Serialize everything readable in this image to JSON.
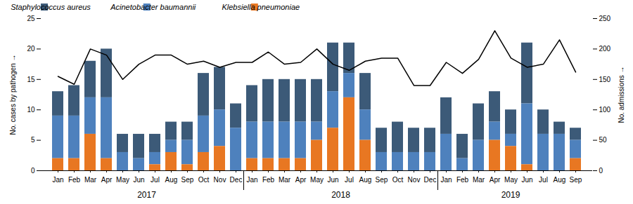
{
  "chart_data": {
    "type": "bar",
    "stacked": true,
    "legend": "upper left",
    "categories": [
      "Jan",
      "Feb",
      "Mar",
      "Apr",
      "May",
      "Jun",
      "Jul",
      "Aug",
      "Sep",
      "Oct",
      "Nov",
      "Dec",
      "Jan",
      "Feb",
      "Mar",
      "Apr",
      "May",
      "Jun",
      "Jul",
      "Aug",
      "Sep",
      "Oct",
      "Nov",
      "Dec",
      "Jan",
      "Feb",
      "Mar",
      "Apr",
      "May",
      "Jun",
      "Jul",
      "Aug",
      "Sep"
    ],
    "annotations": [
      "2017",
      "2018",
      "2019"
    ],
    "series": [
      {
        "name": "Staphylococcus aureus",
        "color": "#3c5a78",
        "values": [
          4,
          5,
          6,
          8,
          3,
          4,
          3,
          3,
          3,
          7,
          7,
          4,
          6,
          7,
          7,
          7,
          7,
          8,
          5,
          6,
          4,
          5,
          4,
          4,
          6,
          4,
          6,
          5,
          4,
          10,
          4,
          2,
          2
        ]
      },
      {
        "name": "Acinetobacter baumannii",
        "color": "#4e81bd",
        "values": [
          7,
          7,
          6,
          10,
          3,
          2,
          2,
          2,
          4,
          6,
          6,
          7,
          6,
          6,
          6,
          6,
          3,
          6,
          4,
          5,
          3,
          3,
          3,
          3,
          6,
          2,
          5,
          3,
          2,
          10,
          6,
          6,
          3
        ]
      },
      {
        "name": "Klebsiella pneumoniae",
        "color": "#e87722",
        "values": [
          2,
          2,
          6,
          2,
          0,
          0,
          1,
          3,
          1,
          3,
          4,
          0,
          2,
          2,
          2,
          2,
          5,
          7,
          12,
          5,
          0,
          0,
          0,
          0,
          0,
          0,
          0,
          5,
          4,
          1,
          0,
          0,
          2
        ]
      },
      {
        "type": "line",
        "axis": "y2",
        "color": "#000000",
        "values": [
          155,
          142,
          200,
          190,
          150,
          175,
          190,
          190,
          175,
          180,
          170,
          178,
          178,
          195,
          175,
          178,
          200,
          175,
          165,
          180,
          185,
          185,
          140,
          140,
          178,
          160,
          183,
          230,
          185,
          170,
          175,
          215,
          162
        ]
      }
    ],
    "ylim": [
      0,
      25
    ],
    "yticks": [
      0,
      5,
      10,
      15,
      20,
      25
    ],
    "ylabel": "No. cases by pathogen",
    "y2lim": [
      0,
      250
    ],
    "y2ticks": [
      0,
      50,
      100,
      150,
      200,
      250
    ],
    "y2label": "No. admissions"
  }
}
